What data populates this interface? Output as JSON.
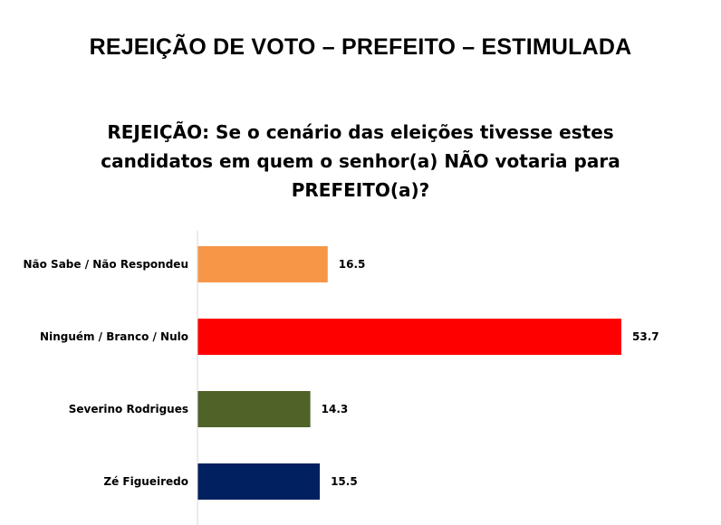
{
  "header": {
    "title": "REJEIÇÃO DE VOTO – PREFEITO – ESTIMULADA",
    "question": "REJEIÇÃO: Se o cenário das eleições tivesse estes candidatos em quem o senhor(a) NÃO votaria para PREFEITO(a)?"
  },
  "chart_data": {
    "type": "bar",
    "orientation": "horizontal",
    "title": "",
    "categories": [
      "Não Sabe / Não Respondeu",
      "Ninguém / Branco / Nulo",
      "Severino Rodrigues",
      "Zé Figueiredo"
    ],
    "values": [
      16.5,
      53.7,
      14.3,
      15.5
    ],
    "value_labels": [
      "16.5",
      "53.7",
      "14.3",
      "15.5"
    ],
    "colors": [
      "#F79646",
      "#FF0000",
      "#4F6228",
      "#002060"
    ],
    "xlim": [
      0,
      53.7
    ],
    "grid": false,
    "legend": "none"
  }
}
